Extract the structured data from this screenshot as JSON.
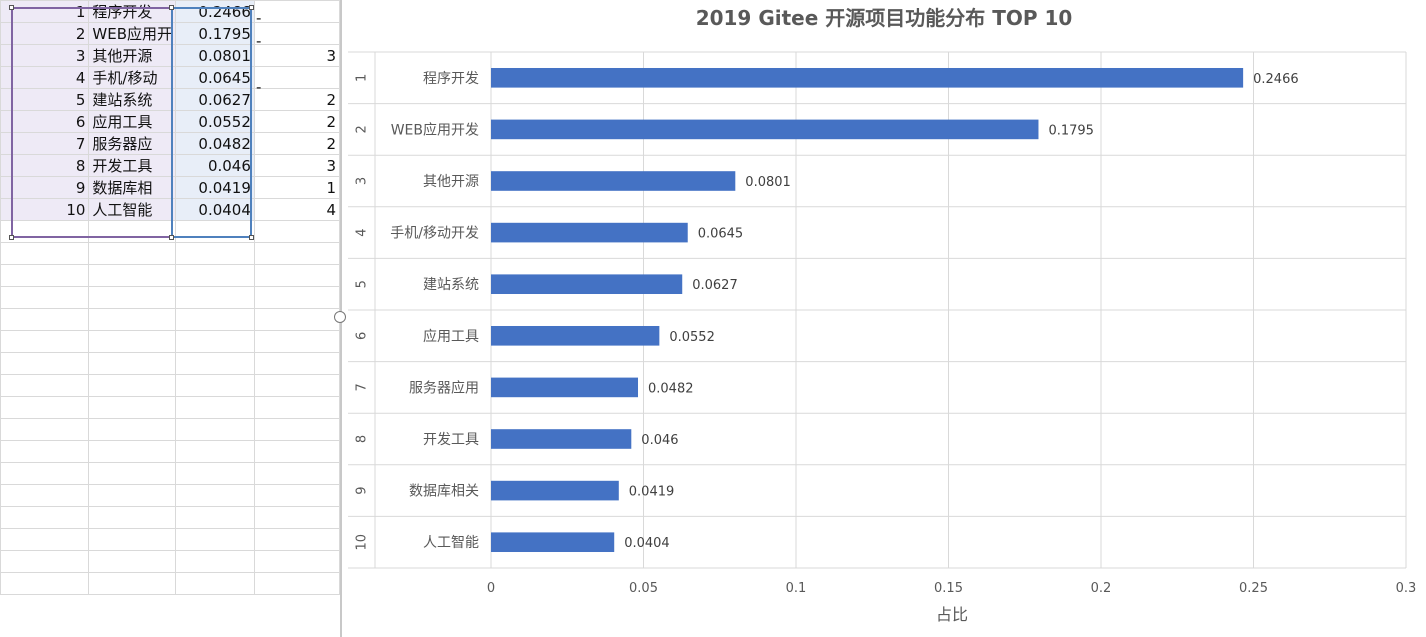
{
  "sheet": {
    "rows": [
      {
        "idx": "1",
        "name": "程序开发",
        "value": "0.2466",
        "flag": "-",
        "extra": ""
      },
      {
        "idx": "2",
        "name": "WEB应用开",
        "value": "0.1795",
        "flag": "-",
        "extra": ""
      },
      {
        "idx": "3",
        "name": "其他开源",
        "value": "0.0801",
        "flag": "",
        "extra": "3"
      },
      {
        "idx": "4",
        "name": "手机/移动",
        "value": "0.0645",
        "flag": "-",
        "extra": ""
      },
      {
        "idx": "5",
        "name": "建站系统",
        "value": "0.0627",
        "flag": "",
        "extra": "2"
      },
      {
        "idx": "6",
        "name": "应用工具",
        "value": "0.0552",
        "flag": "",
        "extra": "2"
      },
      {
        "idx": "7",
        "name": "服务器应",
        "value": "0.0482",
        "flag": "",
        "extra": "2"
      },
      {
        "idx": "8",
        "name": "开发工具",
        "value": "0.046",
        "flag": "",
        "extra": "3"
      },
      {
        "idx": "9",
        "name": "数据库相",
        "value": "0.0419",
        "flag": "",
        "extra": "1"
      },
      {
        "idx": "10",
        "name": "人工智能",
        "value": "0.0404",
        "flag": "",
        "extra": "4"
      }
    ],
    "empty_rows": 17
  },
  "chart_data": {
    "type": "bar",
    "orientation": "horizontal",
    "title": "2019 Gitee 开源项目功能分布 TOP 10",
    "xlabel": "占比",
    "ylabel": "",
    "categories_outer": [
      "1",
      "2",
      "3",
      "4",
      "5",
      "6",
      "7",
      "8",
      "9",
      "10"
    ],
    "categories": [
      "程序开发",
      "WEB应用开发",
      "其他开源",
      "手机/移动开发",
      "建站系统",
      "应用工具",
      "服务器应用",
      "开发工具",
      "数据库相关",
      "人工智能"
    ],
    "values": [
      0.2466,
      0.1795,
      0.0801,
      0.0645,
      0.0627,
      0.0552,
      0.0482,
      0.046,
      0.0419,
      0.0404
    ],
    "data_labels": [
      "0.2466",
      "0.1795",
      "0.0801",
      "0.0645",
      "0.0627",
      "0.0552",
      "0.0482",
      "0.046",
      "0.0419",
      "0.0404"
    ],
    "xlim": [
      0,
      0.3
    ],
    "x_ticks": [
      0,
      0.05,
      0.1,
      0.15,
      0.2,
      0.25,
      0.3
    ],
    "x_tick_labels": [
      "0",
      "0.05",
      "0.1",
      "0.15",
      "0.2",
      "0.25",
      "0.3"
    ],
    "grid": true,
    "legend": "none",
    "bar_color": "#4472c4",
    "grid_color": "#d9d9d9",
    "text_color": "#595959"
  }
}
